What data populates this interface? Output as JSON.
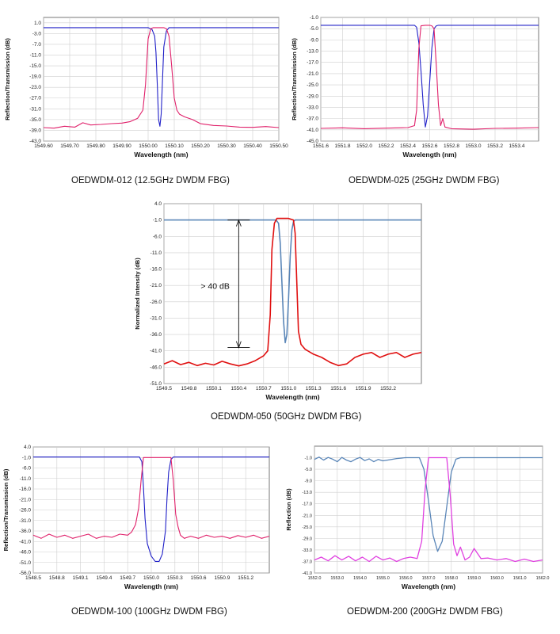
{
  "chart_data": [
    {
      "type": "line",
      "title": "",
      "xlabel": "Wavelength (nm)",
      "ylabel": "Reflection/Transmission  (dB)",
      "xlim": [
        1549.6,
        1550.5
      ],
      "ylim": [
        -43.0,
        3.0
      ],
      "x_ticks": [
        1549.6,
        1549.7,
        1549.8,
        1549.9,
        1550.0,
        1550.1,
        1550.2,
        1550.3,
        1550.4,
        1550.5
      ],
      "x_tick_labels": [
        "1549.60",
        "1549.70",
        "1549.80",
        "1549.90",
        "1550.00",
        "1550.10",
        "1550.20",
        "1550.30",
        "1550.40",
        "1550.50"
      ],
      "y_ticks": [
        1.0,
        -3.0,
        -7.0,
        -11.0,
        -15.0,
        -19.0,
        -23.0,
        -27.0,
        -31.0,
        -35.0,
        -39.0,
        -43.0
      ],
      "y_tick_labels": [
        "1.0",
        "-3.0",
        "-7.0",
        "-11.0",
        "-15.0",
        "-19.0",
        "-23.0",
        "-27.0",
        "-31.0",
        "-35.0",
        "-39.0",
        "-43.0"
      ],
      "grid": true,
      "series": [
        {
          "name": "Transmission",
          "color": "#2020c8",
          "x": [
            1549.6,
            1550.0,
            1550.015,
            1550.025,
            1550.03,
            1550.035,
            1550.04,
            1550.045,
            1550.05,
            1550.055,
            1550.06,
            1550.07,
            1550.08,
            1550.5
          ],
          "y": [
            -0.8,
            -0.8,
            -1.5,
            -4,
            -10,
            -22,
            -35,
            -37.5,
            -33,
            -20,
            -8,
            -2,
            -0.8,
            -0.8
          ]
        },
        {
          "name": "Reflection",
          "color": "#e0206a",
          "x": [
            1549.6,
            1549.64,
            1549.68,
            1549.72,
            1549.75,
            1549.78,
            1549.82,
            1549.86,
            1549.9,
            1549.93,
            1549.96,
            1549.98,
            1549.99,
            1550.0,
            1550.01,
            1550.02,
            1550.03,
            1550.04,
            1550.05,
            1550.06,
            1550.07,
            1550.08,
            1550.09,
            1550.1,
            1550.11,
            1550.12,
            1550.14,
            1550.17,
            1550.2,
            1550.25,
            1550.3,
            1550.35,
            1550.4,
            1550.45,
            1550.5
          ],
          "y": [
            -38,
            -38.2,
            -37.5,
            -37.8,
            -36.2,
            -37,
            -36.8,
            -36.5,
            -36.3,
            -35.8,
            -34.5,
            -31.5,
            -22,
            -5,
            -1.2,
            -0.8,
            -0.8,
            -0.8,
            -0.8,
            -0.8,
            -1.2,
            -4,
            -15,
            -27,
            -31.5,
            -33,
            -34,
            -35,
            -36.5,
            -37.2,
            -37.4,
            -37.8,
            -37.9,
            -37.6,
            -38
          ]
        }
      ]
    },
    {
      "type": "line",
      "title": "",
      "xlabel": "Wavelength (nm)",
      "ylabel": "Reflection/Transmission  (dB)",
      "xlim": [
        1551.6,
        1553.6
      ],
      "ylim": [
        -45.0,
        -1.0
      ],
      "x_ticks": [
        1551.6,
        1551.8,
        1552.0,
        1552.2,
        1552.4,
        1552.6,
        1552.8,
        1553.0,
        1553.2,
        1553.4
      ],
      "x_tick_labels": [
        "1551.6",
        "1551.8",
        "1552.0",
        "1552.2",
        "1552.4",
        "1552.6",
        "1552.8",
        "1553.0",
        "1553.2",
        "1553.4"
      ],
      "y_ticks": [
        -1.0,
        -5.0,
        -9.0,
        -13.0,
        -17.0,
        -21.0,
        -25.0,
        -29.0,
        -33.0,
        -37.0,
        -41.0,
        -45.0
      ],
      "y_tick_labels": [
        "-1.0",
        "-5.0",
        "-9.0",
        "-13.0",
        "-17.0",
        "-21.0",
        "-25.0",
        "-29.0",
        "-33.0",
        "-37.0",
        "-41.0",
        "-45.0"
      ],
      "grid": true,
      "series": [
        {
          "name": "Transmission",
          "color": "#2020c8",
          "x": [
            1551.6,
            1552.46,
            1552.48,
            1552.5,
            1552.52,
            1552.54,
            1552.56,
            1552.58,
            1552.6,
            1552.62,
            1552.64,
            1552.66,
            1552.68,
            1553.6
          ],
          "y": [
            -3.8,
            -3.8,
            -4.5,
            -10,
            -20,
            -32,
            -40,
            -36,
            -24,
            -12,
            -5,
            -4,
            -3.8,
            -3.8
          ]
        },
        {
          "name": "Reflection",
          "color": "#e0206a",
          "x": [
            1551.6,
            1551.8,
            1552.0,
            1552.2,
            1552.4,
            1552.46,
            1552.48,
            1552.5,
            1552.52,
            1552.56,
            1552.6,
            1552.62,
            1552.64,
            1552.66,
            1552.68,
            1552.7,
            1552.72,
            1552.74,
            1552.8,
            1553.0,
            1553.2,
            1553.4,
            1553.6
          ],
          "y": [
            -40.5,
            -40.3,
            -40.6,
            -40.4,
            -40.2,
            -39.5,
            -34,
            -12,
            -4,
            -3.8,
            -3.8,
            -4,
            -5,
            -18,
            -32,
            -39.5,
            -37,
            -40,
            -40.6,
            -40.8,
            -40.5,
            -40.4,
            -40.2
          ]
        }
      ]
    },
    {
      "type": "line",
      "title": "",
      "xlabel": "Wavelength (nm)",
      "ylabel": "Normalized Intensity  (dB)",
      "xlim": [
        1549.5,
        1552.6
      ],
      "ylim": [
        -51.0,
        4.0
      ],
      "x_ticks": [
        1549.5,
        1549.8,
        1550.1,
        1550.4,
        1550.7,
        1551.0,
        1551.3,
        1551.6,
        1551.9,
        1552.2
      ],
      "x_tick_labels": [
        "1549.5",
        "1549.8",
        "1550.1",
        "1550.4",
        "1550.7",
        "1551.0",
        "1551.3",
        "1551.6",
        "1551.9",
        "1552.2"
      ],
      "y_ticks": [
        4.0,
        -1.0,
        -6.0,
        -11.0,
        -16.0,
        -21.0,
        -26.0,
        -31.0,
        -36.0,
        -41.0,
        -46.0,
        -51.0
      ],
      "y_tick_labels": [
        "4.0",
        "-1.0",
        "-6.0",
        "-11.0",
        "-16.0",
        "-21.0",
        "-26.0",
        "-31.0",
        "-36.0",
        "-41.0",
        "-46.0",
        "-51.0"
      ],
      "grid": true,
      "annotations": [
        "> 40 dB"
      ],
      "series": [
        {
          "name": "Transmission",
          "color": "#5a86b8",
          "x": [
            1549.5,
            1550.85,
            1550.88,
            1550.9,
            1550.92,
            1550.94,
            1550.96,
            1550.98,
            1551.0,
            1551.02,
            1551.04,
            1551.06,
            1551.08,
            1552.6
          ],
          "y": [
            -1.0,
            -1.0,
            -2,
            -8,
            -20,
            -32,
            -38.5,
            -36,
            -25,
            -12,
            -4,
            -1.5,
            -1.0,
            -1.0
          ]
        },
        {
          "name": "Reflection",
          "color": "#e01010",
          "x": [
            1549.5,
            1549.6,
            1549.7,
            1549.8,
            1549.9,
            1550.0,
            1550.1,
            1550.2,
            1550.3,
            1550.4,
            1550.5,
            1550.6,
            1550.7,
            1550.75,
            1550.78,
            1550.8,
            1550.83,
            1550.86,
            1551.0,
            1551.06,
            1551.08,
            1551.1,
            1551.12,
            1551.15,
            1551.2,
            1551.3,
            1551.4,
            1551.5,
            1551.6,
            1551.7,
            1551.8,
            1551.9,
            1552.0,
            1552.1,
            1552.2,
            1552.3,
            1552.4,
            1552.5,
            1552.6
          ],
          "y": [
            -45,
            -44,
            -45.2,
            -44.5,
            -45.5,
            -44.8,
            -45.3,
            -44.2,
            -45,
            -45.6,
            -45,
            -44,
            -42.5,
            -41,
            -30,
            -10,
            -2,
            -0.5,
            -0.5,
            -1,
            -5,
            -20,
            -35,
            -39,
            -40.5,
            -42,
            -43,
            -44.5,
            -45.5,
            -45,
            -43,
            -42,
            -41.5,
            -43,
            -42,
            -41.5,
            -43,
            -42,
            -41.5
          ]
        }
      ]
    },
    {
      "type": "line",
      "title": "",
      "xlabel": "Wavelength (nm)",
      "ylabel": "Reflection/Transmission  (dB)",
      "xlim": [
        1548.5,
        1551.5
      ],
      "ylim": [
        -56.0,
        4.0
      ],
      "x_ticks": [
        1548.5,
        1548.8,
        1549.1,
        1549.4,
        1549.7,
        1550.0,
        1550.3,
        1550.6,
        1550.9,
        1551.2
      ],
      "x_tick_labels": [
        "1548.5",
        "1548.8",
        "1549.1",
        "1549.4",
        "1549.7",
        "1550.0",
        "1550.3",
        "1550.6",
        "1550.9",
        "1551.2"
      ],
      "y_ticks": [
        4.0,
        -1.0,
        -6.0,
        -11.0,
        -16.0,
        -21.0,
        -26.0,
        -31.0,
        -36.0,
        -41.0,
        -46.0,
        -51.0,
        -56.0
      ],
      "y_tick_labels": [
        "4.0",
        "-1.0",
        "-6.0",
        "-11.0",
        "-16.0",
        "-21.0",
        "-26.0",
        "-31.0",
        "-36.0",
        "-41.0",
        "-46.0",
        "-51.0",
        "-56.0"
      ],
      "grid": true,
      "series": [
        {
          "name": "Transmission",
          "color": "#2020c8",
          "x": [
            1548.5,
            1549.85,
            1549.88,
            1549.9,
            1549.92,
            1549.95,
            1550.0,
            1550.05,
            1550.1,
            1550.14,
            1550.18,
            1550.2,
            1550.22,
            1550.25,
            1550.28,
            1551.5
          ],
          "y": [
            -0.8,
            -0.8,
            -3,
            -15,
            -30,
            -42,
            -48,
            -50.5,
            -50.5,
            -47,
            -36,
            -20,
            -8,
            -2,
            -0.8,
            -0.8
          ]
        },
        {
          "name": "Reflection",
          "color": "#e0206a",
          "x": [
            1548.5,
            1548.6,
            1548.7,
            1548.8,
            1548.9,
            1549.0,
            1549.1,
            1549.2,
            1549.3,
            1549.4,
            1549.5,
            1549.6,
            1549.7,
            1549.75,
            1549.8,
            1549.84,
            1549.87,
            1549.9,
            1550.25,
            1550.28,
            1550.31,
            1550.34,
            1550.37,
            1550.42,
            1550.5,
            1550.6,
            1550.7,
            1550.8,
            1550.9,
            1551.0,
            1551.1,
            1551.2,
            1551.3,
            1551.4,
            1551.5
          ],
          "y": [
            -38,
            -39.5,
            -37.5,
            -39,
            -38,
            -39.5,
            -38.5,
            -37.5,
            -39.5,
            -38.5,
            -39,
            -37.5,
            -38,
            -36.5,
            -33,
            -25,
            -12,
            -1,
            -1,
            -12,
            -28,
            -34,
            -38,
            -39.5,
            -38.5,
            -39.5,
            -38,
            -39,
            -38.5,
            -39.5,
            -38.2,
            -39,
            -38,
            -39.5,
            -38.5
          ]
        }
      ]
    },
    {
      "type": "line",
      "title": "",
      "xlabel": "Wavelength (nm)",
      "ylabel": "Reflection (dB)",
      "xlim": [
        1552.0,
        1562.0
      ],
      "ylim": [
        -41.0,
        3.0
      ],
      "x_ticks": [
        1552.0,
        1553.0,
        1554.0,
        1555.0,
        1556.0,
        1557.0,
        1558.0,
        1559.0,
        1560.0,
        1561.0,
        1562.0
      ],
      "x_tick_labels": [
        "1552.0",
        "1553.0",
        "1554.0",
        "1555.0",
        "1556.0",
        "1557.0",
        "1558.0",
        "1559.0",
        "1560.0",
        "1561.0",
        "1562.0"
      ],
      "y_ticks": [
        -1.0,
        -5.0,
        -9.0,
        -13.0,
        -17.0,
        -21.0,
        -25.0,
        -29.0,
        -33.0,
        -37.0,
        -41.0
      ],
      "y_tick_labels": [
        "-1.0",
        "-5.0",
        "-9.0",
        "-13.0",
        "-17.0",
        "-21.0",
        "-25.0",
        "-29.0",
        "-33.0",
        "-37.0",
        "-41.0"
      ],
      "grid": true,
      "series": [
        {
          "name": "Transmission",
          "color": "#5a86b8",
          "x": [
            1552.0,
            1552.2,
            1552.4,
            1552.6,
            1552.8,
            1553.0,
            1553.2,
            1553.4,
            1553.6,
            1553.8,
            1554.0,
            1554.2,
            1554.4,
            1554.6,
            1554.8,
            1555.0,
            1555.3,
            1555.6,
            1556.0,
            1556.6,
            1556.8,
            1557.0,
            1557.2,
            1557.4,
            1557.6,
            1557.8,
            1558.0,
            1558.2,
            1558.4,
            1559.0,
            1560.0,
            1561.0,
            1562.0
          ],
          "y": [
            -1.6,
            -0.8,
            -1.8,
            -0.9,
            -1.5,
            -2.4,
            -0.9,
            -1.8,
            -2.4,
            -1.5,
            -0.9,
            -2.0,
            -1.4,
            -2.4,
            -1.6,
            -2.1,
            -1.7,
            -1.3,
            -1.0,
            -1.0,
            -5,
            -16,
            -28,
            -33.5,
            -30,
            -18,
            -6,
            -1.5,
            -1.0,
            -1.0,
            -1.0,
            -1.0,
            -1.0
          ]
        },
        {
          "name": "Reflection",
          "color": "#e040e0",
          "x": [
            1552.0,
            1552.3,
            1552.6,
            1552.9,
            1553.2,
            1553.5,
            1553.8,
            1554.1,
            1554.4,
            1554.7,
            1555.0,
            1555.3,
            1555.6,
            1555.9,
            1556.2,
            1556.5,
            1556.7,
            1556.85,
            1557.0,
            1557.8,
            1557.95,
            1558.1,
            1558.25,
            1558.4,
            1558.6,
            1558.8,
            1559.0,
            1559.3,
            1559.6,
            1560.0,
            1560.4,
            1560.8,
            1561.2,
            1561.6,
            1562.0
          ],
          "y": [
            -36.5,
            -35.5,
            -36.8,
            -35,
            -36.5,
            -35.2,
            -36.8,
            -35.5,
            -37,
            -35.2,
            -36.5,
            -35.8,
            -37,
            -36,
            -35.5,
            -36,
            -30,
            -12,
            -1.0,
            -1.0,
            -14,
            -31,
            -35,
            -32,
            -36.5,
            -35.5,
            -32.5,
            -36,
            -35.8,
            -36.5,
            -36,
            -37,
            -36.2,
            -37,
            -36.5
          ]
        }
      ]
    }
  ],
  "captions": [
    "OEDWDM-012 (12.5GHz DWDM FBG)",
    "OEDWDM-025 (25GHz DWDM FBG)",
    "OEDWDM-050 (50GHz DWDM FBG)",
    "OEDWDM-100 (100GHz DWDM FBG)",
    "OEDWDM-200 (200GHz DWDM FBG)"
  ]
}
